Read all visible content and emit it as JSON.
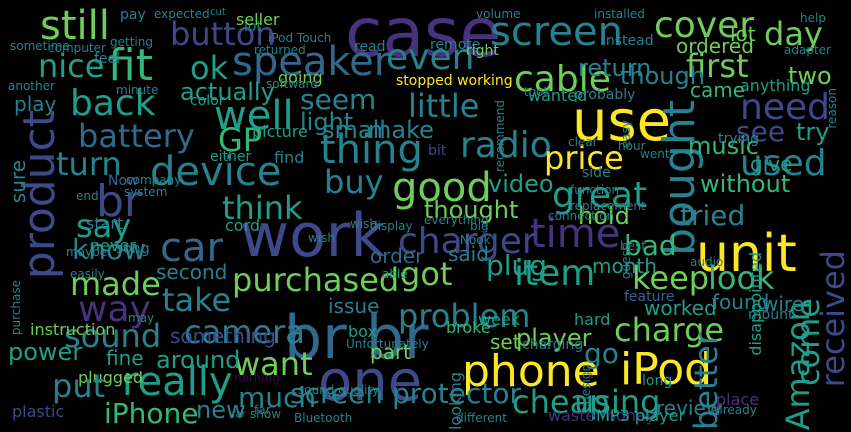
{
  "background": "#000000",
  "palette": {
    "purple": "#46327e",
    "indigo": "#3e4989",
    "blue": "#31688e",
    "teal": "#26828e",
    "green": "#1f9e89",
    "mint": "#35b779",
    "lime": "#6ece58",
    "yellow": "#fde725",
    "dark": "#440154"
  },
  "words": [
    "case",
    "screen",
    "cover",
    "still",
    "button",
    "fit",
    "speaker",
    "even",
    "first",
    "day",
    "use",
    "cable",
    "nice",
    "ok",
    "back",
    "GP",
    "well",
    "need",
    "product",
    "br",
    "device",
    "thing",
    "radio",
    "price",
    "used",
    "bought",
    "good",
    "work",
    "time",
    "unit",
    "car",
    "charger",
    "item",
    "got",
    "keep",
    "look",
    "received",
    "br br",
    "one",
    "phone",
    "iPod",
    "really",
    "iPhone",
    "sound",
    "camera",
    "problem",
    "charge",
    "better",
    "cheap",
    "using",
    "Amazon",
    "come",
    "way",
    "battery",
    "little",
    "small",
    "make",
    "great",
    "see",
    "try",
    "music",
    "two",
    "lot",
    "ordered",
    "return",
    "though",
    "came",
    "anything",
    "actually",
    "seem",
    "light",
    "picture",
    "turn",
    "say",
    "think",
    "buy",
    "know",
    "tried",
    "without",
    "give",
    "thought",
    "hold",
    "video",
    "plug",
    "made",
    "take",
    "purchased",
    "bad",
    "month",
    "second",
    "order",
    "said",
    "worked",
    "found",
    "wire",
    "want",
    "part",
    "player",
    "set",
    "go",
    "plugged",
    "power",
    "put",
    "much",
    "screen protector",
    "review",
    "new",
    "fine",
    "around",
    "something",
    "issue",
    "box",
    "instruction",
    "plastic",
    "cord",
    "able",
    "nothing",
    "sound quality",
    "waste money",
    "MP3 player",
    "Bluetooth",
    "different",
    "place",
    "design",
    "looking",
    "charging",
    "broke",
    "week",
    "hard",
    "long",
    "mount",
    "feature",
    "disappointed",
    "side",
    "function",
    "replacement",
    "connection",
    "clear",
    "hour",
    "bit",
    "recommend",
    "probably",
    "wanted",
    "color",
    "play",
    "another",
    "sure",
    "purchase",
    "maybe",
    "never",
    "song",
    "start",
    "wish",
    "everything",
    "Now",
    "end",
    "easily",
    "company",
    "system",
    "either",
    "find",
    "going",
    "lot",
    "seller",
    "pay",
    "expected",
    "cut",
    "installed",
    "help",
    "adapter",
    "reason",
    "volume",
    "remote",
    "instead",
    "iPod Touch",
    "read",
    "returned",
    "computer",
    "getting",
    "sometime",
    "feel",
    "minute",
    "software",
    "stopped working",
    "took",
    "right",
    "trying",
    "guess",
    "audio",
    "already",
    "show",
    "far",
    "top",
    "best",
    "easy",
    "went",
    "big",
    "Nook",
    "display",
    "Unfortunately",
    "may",
    "far",
    "wish"
  ]
}
